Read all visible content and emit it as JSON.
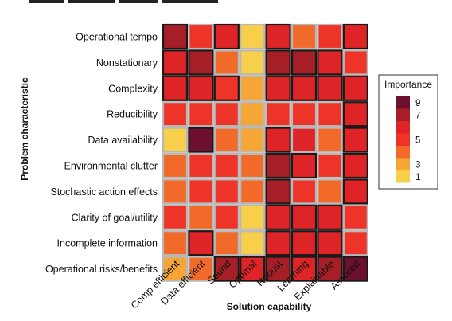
{
  "chart_data": {
    "type": "heatmap",
    "title": "",
    "xlabel": "Solution capability",
    "ylabel": "Problem characteristic",
    "rows": [
      "Operational tempo",
      "Nonstationary",
      "Complexity",
      "Reducibility",
      "Data availability",
      "Environmental clutter",
      "Stochastic action effects",
      "Clarity of goal/utility",
      "Incomplete information",
      "Operational risks/benefits"
    ],
    "columns": [
      "Comp efficient",
      "Data efficient",
      "Sound",
      "Optimal",
      "Robust",
      "Learning",
      "Explainable",
      "Assured"
    ],
    "values": [
      [
        7,
        5,
        6,
        1,
        6,
        4,
        5,
        6
      ],
      [
        6,
        7,
        4,
        1,
        7,
        7,
        6,
        5
      ],
      [
        6,
        6,
        5,
        3,
        6,
        6,
        6,
        6
      ],
      [
        5,
        5,
        5,
        3,
        5,
        5,
        5,
        6
      ],
      [
        1,
        9,
        4,
        3,
        6,
        6,
        4,
        6
      ],
      [
        4,
        5,
        5,
        4,
        7,
        6,
        5,
        6
      ],
      [
        4,
        5,
        5,
        4,
        7,
        5,
        4,
        6
      ],
      [
        5,
        4,
        5,
        1,
        6,
        6,
        6,
        5
      ],
      [
        4,
        6,
        4,
        1,
        6,
        6,
        6,
        5
      ],
      [
        3,
        4,
        7,
        6,
        7,
        6,
        7,
        9
      ]
    ],
    "bordered": [
      [
        true,
        false,
        true,
        false,
        true,
        false,
        false,
        true
      ],
      [
        true,
        true,
        false,
        false,
        true,
        true,
        true,
        false
      ],
      [
        true,
        true,
        true,
        false,
        true,
        true,
        true,
        true
      ],
      [
        false,
        false,
        false,
        false,
        false,
        false,
        false,
        true
      ],
      [
        false,
        true,
        false,
        false,
        true,
        false,
        false,
        true
      ],
      [
        false,
        false,
        false,
        false,
        true,
        true,
        false,
        true
      ],
      [
        false,
        false,
        false,
        false,
        true,
        false,
        false,
        true
      ],
      [
        false,
        false,
        false,
        false,
        true,
        true,
        true,
        false
      ],
      [
        false,
        true,
        false,
        false,
        true,
        true,
        true,
        false
      ],
      [
        false,
        false,
        true,
        true,
        true,
        true,
        true,
        true
      ]
    ],
    "value_range": [
      1,
      9
    ],
    "colors": {
      "1": "#f7cf4a",
      "3": "#f5a636",
      "4": "#f26a2a",
      "5": "#ee3429",
      "6": "#de2427",
      "7": "#a71f26",
      "9": "#6d1030"
    },
    "legend": {
      "title": "Importance",
      "ticks": [
        "9",
        "7",
        "5",
        "3",
        "1"
      ],
      "placement": "right"
    }
  }
}
